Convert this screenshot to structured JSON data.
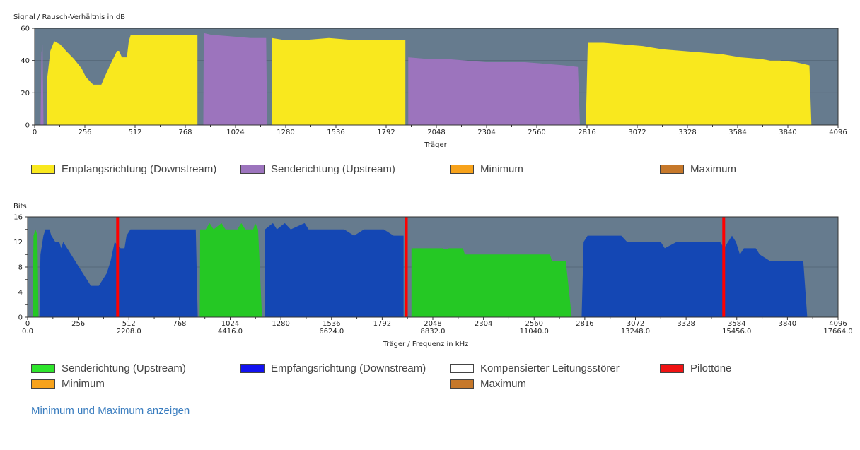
{
  "chart_data": [
    {
      "type": "area",
      "ylabel": "Signal / Rausch-Verhältnis in dB",
      "xlabel": "Träger",
      "xlim": [
        0,
        4096
      ],
      "ylim": [
        0,
        60
      ],
      "xticks": [
        0,
        256,
        512,
        768,
        1024,
        1280,
        1536,
        1792,
        2048,
        2304,
        2560,
        2816,
        3072,
        3328,
        3584,
        3840,
        4096
      ],
      "yticks": [
        0,
        20,
        40,
        60
      ],
      "grid": true,
      "background": "#667b8e",
      "series": [
        {
          "name": "Empfangsrichtung (Downstream)",
          "color": "#f9e81e",
          "segments": [
            [
              [
                64,
                0
              ],
              [
                65,
                30
              ],
              [
                80,
                46
              ],
              [
                100,
                52
              ],
              [
                130,
                50
              ],
              [
                160,
                46
              ],
              [
                200,
                41
              ],
              [
                240,
                35
              ],
              [
                260,
                30
              ],
              [
                290,
                26
              ],
              [
                300,
                25
              ],
              [
                340,
                25
              ],
              [
                350,
                28
              ],
              [
                380,
                36
              ],
              [
                400,
                41
              ],
              [
                420,
                46
              ],
              [
                430,
                46
              ],
              [
                445,
                42
              ],
              [
                470,
                42
              ],
              [
                480,
                52
              ],
              [
                490,
                56
              ],
              [
                830,
                56
              ],
              [
                830,
                0
              ]
            ],
            [
              [
                1210,
                0
              ],
              [
                1210,
                54
              ],
              [
                1260,
                53
              ],
              [
                1300,
                53
              ],
              [
                1400,
                53
              ],
              [
                1500,
                54
              ],
              [
                1600,
                53
              ],
              [
                1700,
                53
              ],
              [
                1800,
                53
              ],
              [
                1890,
                53
              ],
              [
                1890,
                0
              ]
            ],
            [
              [
                2810,
                0
              ],
              [
                2820,
                51
              ],
              [
                2900,
                51
              ],
              [
                3000,
                50
              ],
              [
                3100,
                49
              ],
              [
                3200,
                47
              ],
              [
                3300,
                46
              ],
              [
                3400,
                45
              ],
              [
                3500,
                44
              ],
              [
                3600,
                42
              ],
              [
                3700,
                41
              ],
              [
                3750,
                40
              ],
              [
                3800,
                40
              ],
              [
                3880,
                39
              ],
              [
                3950,
                37
              ],
              [
                3960,
                0
              ]
            ]
          ]
        },
        {
          "name": "Senderichtung (Upstream)",
          "color": "#9c74bd",
          "segments": [
            [
              [
                30,
                0
              ],
              [
                35,
                45
              ],
              [
                40,
                50
              ],
              [
                45,
                0
              ]
            ],
            [
              [
                860,
                0
              ],
              [
                862,
                57
              ],
              [
                900,
                56
              ],
              [
                1000,
                55
              ],
              [
                1100,
                54
              ],
              [
                1180,
                54
              ],
              [
                1185,
                0
              ]
            ],
            [
              [
                1905,
                0
              ],
              [
                1905,
                42
              ],
              [
                2000,
                41
              ],
              [
                2100,
                41
              ],
              [
                2200,
                40
              ],
              [
                2300,
                39
              ],
              [
                2400,
                39
              ],
              [
                2500,
                39
              ],
              [
                2600,
                38
              ],
              [
                2700,
                37
              ],
              [
                2770,
                36
              ],
              [
                2780,
                0
              ]
            ]
          ]
        }
      ],
      "legend": [
        {
          "label": "Empfangsrichtung (Downstream)",
          "color": "#f9e81e"
        },
        {
          "label": "Senderichtung (Upstream)",
          "color": "#9c74bd"
        },
        {
          "label": "Minimum",
          "color": "#f7a21b"
        },
        {
          "label": "Maximum",
          "color": "#c6782a"
        }
      ]
    },
    {
      "type": "area",
      "ylabel": "Bits",
      "xlabel": "Träger / Frequenz in kHz",
      "xlim": [
        0,
        4096
      ],
      "ylim": [
        0,
        16
      ],
      "xticks": [
        0,
        256,
        512,
        768,
        1024,
        1280,
        1536,
        1792,
        2048,
        2304,
        2560,
        2816,
        3072,
        3328,
        3584,
        3840,
        4096
      ],
      "xticks_freq": [
        {
          "carrier": 0,
          "label": "0.0"
        },
        {
          "carrier": 512,
          "label": "2208.0"
        },
        {
          "carrier": 1024,
          "label": "4416.0"
        },
        {
          "carrier": 1536,
          "label": "6624.0"
        },
        {
          "carrier": 2048,
          "label": "8832.0"
        },
        {
          "carrier": 2560,
          "label": "11040.0"
        },
        {
          "carrier": 3072,
          "label": "13248.0"
        },
        {
          "carrier": 3584,
          "label": "15456.0"
        },
        {
          "carrier": 4096,
          "label": "17664.0"
        }
      ],
      "yticks": [
        0,
        4,
        8,
        12,
        16
      ],
      "grid": true,
      "background": "#667b8e",
      "series": [
        {
          "name": "Senderichtung (Upstream)",
          "color": "#25c824",
          "segments": [
            [
              [
                25,
                0
              ],
              [
                30,
                13
              ],
              [
                40,
                14
              ],
              [
                50,
                13
              ],
              [
                55,
                0
              ]
            ],
            [
              [
                870,
                0
              ],
              [
                872,
                14
              ],
              [
                900,
                14
              ],
              [
                920,
                15
              ],
              [
                940,
                14
              ],
              [
                980,
                15
              ],
              [
                1000,
                14
              ],
              [
                1060,
                14
              ],
              [
                1080,
                15
              ],
              [
                1100,
                14
              ],
              [
                1140,
                14
              ],
              [
                1150,
                15
              ],
              [
                1165,
                14
              ],
              [
                1185,
                0
              ]
            ],
            [
              [
                1940,
                0
              ],
              [
                1940,
                11
              ],
              [
                2100,
                11
              ],
              [
                2110,
                10.8
              ],
              [
                2130,
                11
              ],
              [
                2200,
                11
              ],
              [
                2210,
                10
              ],
              [
                2300,
                10
              ],
              [
                2500,
                10
              ],
              [
                2640,
                10
              ],
              [
                2650,
                9
              ],
              [
                2720,
                9
              ],
              [
                2750,
                0
              ]
            ]
          ]
        },
        {
          "name": "Empfangsrichtung (Downstream)",
          "color": "#1447b4",
          "segments": [
            [
              [
                60,
                0
              ],
              [
                65,
                10
              ],
              [
                80,
                13
              ],
              [
                90,
                14
              ],
              [
                110,
                14
              ],
              [
                120,
                13
              ],
              [
                140,
                12
              ],
              [
                160,
                12
              ],
              [
                170,
                11
              ],
              [
                180,
                12
              ],
              [
                200,
                11
              ],
              [
                240,
                9
              ],
              [
                280,
                7
              ],
              [
                300,
                6
              ],
              [
                320,
                5
              ],
              [
                360,
                5
              ],
              [
                380,
                6
              ],
              [
                400,
                7
              ],
              [
                420,
                9
              ],
              [
                440,
                12
              ],
              [
                470,
                11
              ],
              [
                490,
                11
              ],
              [
                500,
                13
              ],
              [
                520,
                14
              ],
              [
                850,
                14
              ],
              [
                860,
                0
              ]
            ],
            [
              [
                1200,
                0
              ],
              [
                1200,
                14
              ],
              [
                1240,
                15
              ],
              [
                1260,
                14
              ],
              [
                1300,
                15
              ],
              [
                1330,
                14
              ],
              [
                1400,
                15
              ],
              [
                1420,
                14
              ],
              [
                1600,
                14
              ],
              [
                1650,
                13
              ],
              [
                1700,
                14
              ],
              [
                1800,
                14
              ],
              [
                1850,
                13
              ],
              [
                1900,
                13
              ],
              [
                1900,
                0
              ]
            ],
            [
              [
                2800,
                0
              ],
              [
                2810,
                12
              ],
              [
                2830,
                13
              ],
              [
                3000,
                13
              ],
              [
                3030,
                12
              ],
              [
                3200,
                12
              ],
              [
                3220,
                11
              ],
              [
                3280,
                12
              ],
              [
                3500,
                12
              ],
              [
                3520,
                11
              ],
              [
                3560,
                13
              ],
              [
                3580,
                12
              ],
              [
                3600,
                10
              ],
              [
                3620,
                11
              ],
              [
                3680,
                11
              ],
              [
                3700,
                10
              ],
              [
                3750,
                9
              ],
              [
                3920,
                9
              ],
              [
                3940,
                0
              ]
            ]
          ]
        },
        {
          "name": "Pilottöne",
          "color": "#ff0000",
          "lines": [
            455,
            1914,
            3518
          ]
        }
      ],
      "legend": [
        {
          "label": "Senderichtung (Upstream)",
          "color": "#2ee52c"
        },
        {
          "label": "Empfangsrichtung (Downstream)",
          "color": "#1212f0"
        },
        {
          "label": "Kompensierter Leitungsstörer",
          "color": "#ffffff"
        },
        {
          "label": "Pilottöne",
          "color": "#f01313"
        },
        {
          "label": "Minimum",
          "color": "#f7a21b"
        },
        {
          "label": "Maximum",
          "color": "#c6782a"
        }
      ]
    }
  ],
  "link_text": "Minimum und Maximum anzeigen"
}
